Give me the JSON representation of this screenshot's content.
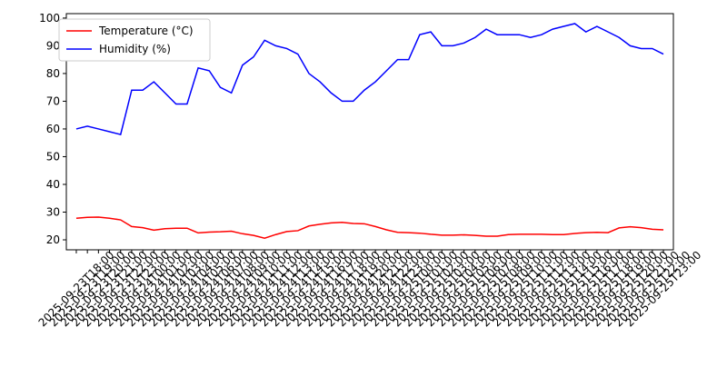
{
  "chart_data": {
    "type": "line",
    "categories": [
      "2025-09-23T18:00",
      "2025-09-23T19:00",
      "2025-09-23T20:00",
      "2025-09-23T21:00",
      "2025-09-23T22:00",
      "2025-09-23T23:00",
      "2025-09-24T00:00",
      "2025-09-24T01:00",
      "2025-09-24T02:00",
      "2025-09-24T03:00",
      "2025-09-24T04:00",
      "2025-09-24T05:00",
      "2025-09-24T06:00",
      "2025-09-24T07:00",
      "2025-09-24T08:00",
      "2025-09-24T09:00",
      "2025-09-24T10:00",
      "2025-09-24T11:00",
      "2025-09-24T12:00",
      "2025-09-24T13:00",
      "2025-09-24T14:00",
      "2025-09-24T15:00",
      "2025-09-24T16:00",
      "2025-09-24T17:00",
      "2025-09-24T18:00",
      "2025-09-24T19:00",
      "2025-09-24T20:00",
      "2025-09-24T21:00",
      "2025-09-24T22:00",
      "2025-09-24T23:00",
      "2025-09-25T00:00",
      "2025-09-25T01:00",
      "2025-09-25T02:00",
      "2025-09-25T03:00",
      "2025-09-25T04:00",
      "2025-09-25T05:00",
      "2025-09-25T06:00",
      "2025-09-25T07:00",
      "2025-09-25T08:00",
      "2025-09-25T09:00",
      "2025-09-25T10:00",
      "2025-09-25T11:00",
      "2025-09-25T12:00",
      "2025-09-25T13:00",
      "2025-09-25T14:00",
      "2025-09-25T15:00",
      "2025-09-25T16:00",
      "2025-09-25T17:00",
      "2025-09-25T18:00",
      "2025-09-25T19:00",
      "2025-09-25T20:00",
      "2025-09-25T21:00",
      "2025-09-25T22:00",
      "2025-09-25T23:00"
    ],
    "series": [
      {
        "name": "Temperature (°C)",
        "color": "#ff0000",
        "values": [
          27.8,
          28.1,
          28.2,
          27.8,
          27.2,
          24.8,
          24.4,
          23.5,
          24.0,
          24.2,
          24.2,
          22.5,
          22.8,
          22.9,
          23.1,
          22.2,
          21.6,
          20.6,
          21.9,
          23.0,
          23.3,
          25.0,
          25.6,
          26.1,
          26.3,
          25.9,
          25.8,
          24.8,
          23.6,
          22.7,
          22.6,
          22.4,
          22.0,
          21.7,
          21.7,
          21.8,
          21.6,
          21.3,
          21.3,
          21.9,
          22.0,
          22.0,
          22.0,
          21.9,
          21.9,
          22.3,
          22.6,
          22.7,
          22.6,
          24.3,
          24.7,
          24.4,
          23.8,
          23.6
        ]
      },
      {
        "name": "Humidity (%)",
        "color": "#0000ff",
        "values": [
          60,
          61,
          60,
          59,
          58,
          74,
          74,
          77,
          73,
          69,
          69,
          82,
          81,
          75,
          73,
          83,
          86,
          92,
          90,
          89,
          87,
          80,
          77,
          73,
          70,
          70,
          74,
          77,
          81,
          85,
          85,
          94,
          95,
          90,
          90,
          91,
          93,
          96,
          94,
          94,
          94,
          93,
          94,
          96,
          97,
          98,
          95,
          97,
          95,
          93,
          90,
          89,
          89,
          87
        ]
      }
    ],
    "ylim": [
      16.4,
      101.6
    ],
    "yticks": [
      20,
      30,
      40,
      50,
      60,
      70,
      80,
      90,
      100
    ],
    "legend": "upper left"
  }
}
